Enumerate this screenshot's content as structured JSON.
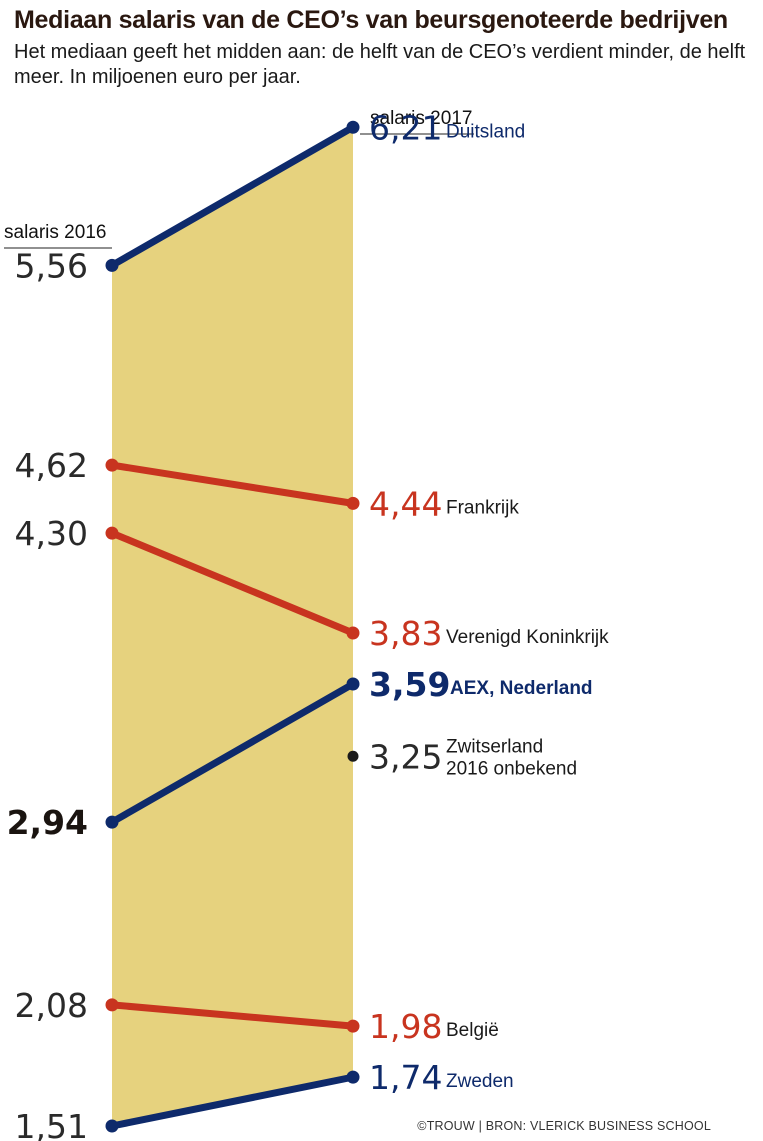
{
  "header": {
    "title": "Mediaan salaris van de CEO’s van beursgenoteerde bedrijven",
    "subtitle": "Het mediaan geeft het midden aan: de helft van de CEO’s verdient minder, de helft meer. In miljoenen euro per jaar."
  },
  "footer": {
    "source": "©TROUW | BRON: VLERICK BUSINESS SCHOOL"
  },
  "chart_data": {
    "type": "line",
    "variant": "slope",
    "x": [
      "salaris 2016",
      "salaris 2017"
    ],
    "colors": {
      "increase": "#0e2a6b",
      "decrease": "#c8341f",
      "neutral": "#1a1a1a",
      "band": "#e6d27e"
    },
    "series": [
      {
        "name": "Duitsland",
        "label2016": "5,56",
        "label2017": "6,21",
        "values": [
          5.56,
          6.21
        ],
        "trend": "increase",
        "bold": false
      },
      {
        "name": "Frankrijk",
        "label2016": "4,62",
        "label2017": "4,44",
        "values": [
          4.62,
          4.44
        ],
        "trend": "decrease",
        "bold": false
      },
      {
        "name": "Verenigd Koninkrijk",
        "label2016": "4,30",
        "label2017": "3,83",
        "values": [
          4.3,
          3.83
        ],
        "trend": "decrease",
        "bold": false
      },
      {
        "name": "AEX, Nederland",
        "label2016": "2,94",
        "label2017": "3,59",
        "values": [
          2.94,
          3.59
        ],
        "trend": "increase",
        "bold": true
      },
      {
        "name": "Zwitserland",
        "note": "2016 onbekend",
        "label2016": null,
        "label2017": "3,25",
        "values": [
          null,
          3.25
        ],
        "trend": "neutral",
        "bold": false
      },
      {
        "name": "België",
        "label2016": "2,08",
        "label2017": "1,98",
        "values": [
          2.08,
          1.98
        ],
        "trend": "decrease",
        "bold": false
      },
      {
        "name": "Zweden",
        "label2016": "1,51",
        "label2017": "1,74",
        "values": [
          1.51,
          1.74
        ],
        "trend": "increase",
        "bold": false
      }
    ]
  }
}
